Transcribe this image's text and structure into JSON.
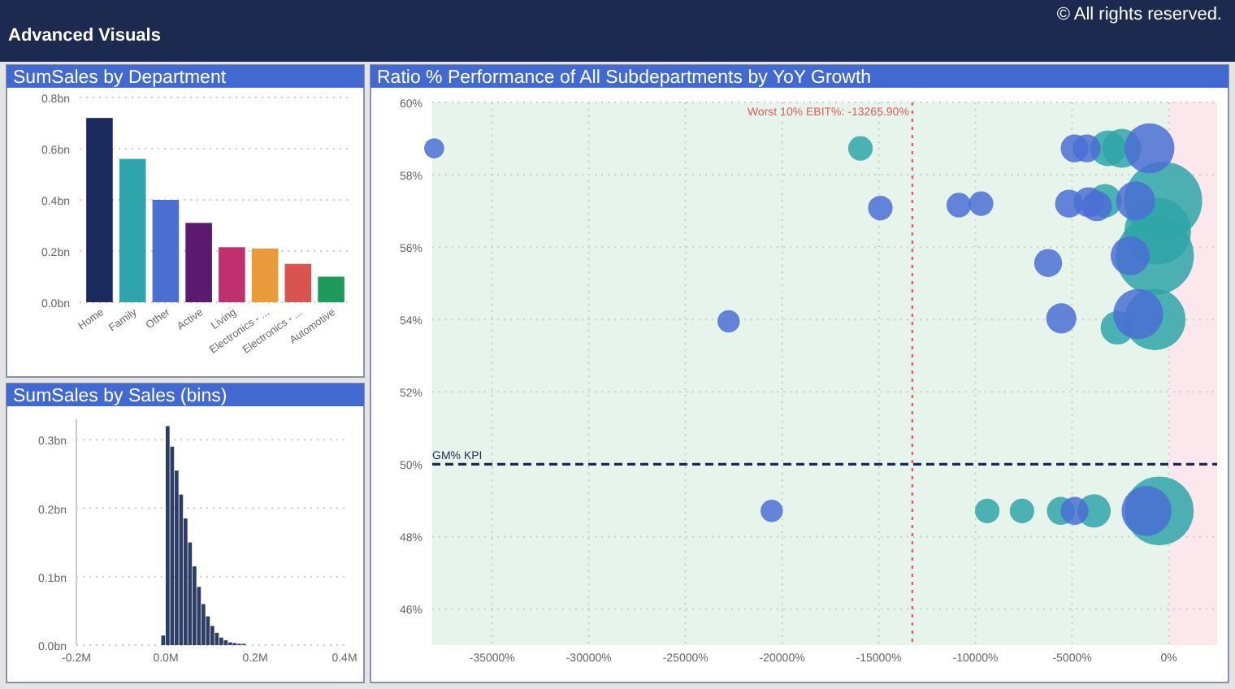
{
  "chart_data": [
    {
      "type": "other",
      "title": "Advanced Visuals",
      "annotations": [
        "© All rights reserved."
      ]
    },
    {
      "type": "bar",
      "title": "SumSales by Department",
      "categories": [
        "Home",
        "Family",
        "Other",
        "Active",
        "Living",
        "Electronics - ...",
        "Electronics - ...",
        "Automotive"
      ],
      "values": [
        0.72,
        0.56,
        0.4,
        0.31,
        0.215,
        0.21,
        0.15,
        0.1
      ],
      "colors": [
        "#1b2a5e",
        "#2fa4ab",
        "#4a6fd1",
        "#5c1a6e",
        "#c0306f",
        "#e99a3a",
        "#d9534f",
        "#1e9b5a"
      ],
      "ylim": [
        0,
        0.8
      ],
      "yticks": [
        {
          "value": 0,
          "label": "0.0bn"
        },
        {
          "value": 0.2,
          "label": "0.2bn"
        },
        {
          "value": 0.4,
          "label": "0.4bn"
        },
        {
          "value": 0.6,
          "label": "0.6bn"
        },
        {
          "value": 0.8,
          "label": "0.8bn"
        }
      ],
      "grid": "y"
    },
    {
      "type": "histogram",
      "title": "SumSales by Sales (bins)",
      "color": "#2c3e66",
      "bins": [
        -0.01,
        0,
        0.01,
        0.02,
        0.03,
        0.04,
        0.05,
        0.06,
        0.07,
        0.08,
        0.09,
        0.1,
        0.11,
        0.12,
        0.13,
        0.14,
        0.15,
        0.16,
        0.17,
        0.18
      ],
      "values": [
        0.014,
        0.32,
        0.29,
        0.255,
        0.22,
        0.185,
        0.15,
        0.115,
        0.085,
        0.06,
        0.042,
        0.028,
        0.018,
        0.011,
        0.007,
        0.004,
        0.003,
        0.002,
        0.002
      ],
      "xlim": [
        -0.2,
        0.4
      ],
      "xticks": [
        {
          "value": -0.2,
          "label": "-0.2M"
        },
        {
          "value": 0,
          "label": "0.0M"
        },
        {
          "value": 0.2,
          "label": "0.2M"
        },
        {
          "value": 0.4,
          "label": "0.4M"
        }
      ],
      "ylim": [
        0,
        0.33
      ],
      "yticks": [
        {
          "value": 0,
          "label": "0.0bn"
        },
        {
          "value": 0.1,
          "label": "0.1bn"
        },
        {
          "value": 0.2,
          "label": "0.2bn"
        },
        {
          "value": 0.3,
          "label": "0.3bn"
        }
      ],
      "grid": "y"
    },
    {
      "type": "bubble",
      "title": "Ratio % Performance of All Subdepartments by YoY Growth",
      "xlim": [
        -38100,
        2500
      ],
      "ylim": [
        45,
        60
      ],
      "xticks": [
        {
          "value": -35000,
          "label": "-35000%"
        },
        {
          "value": -30000,
          "label": "-30000%"
        },
        {
          "value": -25000,
          "label": "-25000%"
        },
        {
          "value": -20000,
          "label": "-20000%"
        },
        {
          "value": -15000,
          "label": "-15000%"
        },
        {
          "value": -10000,
          "label": "-10000%"
        },
        {
          "value": -5000,
          "label": "-5000%"
        },
        {
          "value": 0,
          "label": "0%"
        }
      ],
      "yticks": [
        {
          "value": 46,
          "label": "46%"
        },
        {
          "value": 48,
          "label": "48%"
        },
        {
          "value": 50,
          "label": "50%"
        },
        {
          "value": 52,
          "label": "52%"
        },
        {
          "value": 54,
          "label": "54%"
        },
        {
          "value": 56,
          "label": "56%"
        },
        {
          "value": 58,
          "label": "58%"
        },
        {
          "value": 60,
          "label": "60%"
        }
      ],
      "grid": true,
      "bands": [
        {
          "axis": "x",
          "from": -38100,
          "to": 0,
          "color": "#e6f4ec"
        },
        {
          "axis": "x",
          "from": 0,
          "to": 2500,
          "color": "#fce8ec"
        }
      ],
      "ref_lines": [
        {
          "axis": "x",
          "value": -13265.9,
          "label": "Worst 10% EBIT%: -13265.90%",
          "color": "#e0605a",
          "line_style": "dotted"
        },
        {
          "axis": "y",
          "value": 50,
          "label": "GM% KPI",
          "color": "#1b2a4e",
          "line_style": "dashed"
        }
      ],
      "series": [
        {
          "color": "#2fa4a8",
          "x": [
            -15950,
            -3300,
            -3150,
            -2430,
            -290,
            -570,
            -720,
            -720,
            -2660,
            -9390,
            -7590,
            -5590,
            -3870,
            -490
          ],
          "values": [
            58.73,
            57.28,
            58.73,
            58.73,
            57.28,
            56.44,
            55.76,
            54.0,
            53.77,
            48.71,
            48.71,
            48.71,
            48.71,
            48.71
          ],
          "sizes": [
            0.099,
            0.184,
            0.209,
            0.25,
            1,
            0.73,
            1,
            0.62,
            0.184,
            0.099,
            0.099,
            0.128,
            0.184,
            0.78
          ]
        },
        {
          "color": "#4a6fd4",
          "x": [
            -38000,
            -14920,
            -10860,
            -9710,
            -22770,
            -6240,
            -5560,
            -5160,
            -4870,
            -4240,
            -4150,
            -3720,
            -1720,
            -2000,
            -1580,
            -1000,
            -20540,
            -4870,
            -1150
          ],
          "values": [
            58.73,
            57.08,
            57.16,
            57.2,
            53.95,
            55.56,
            54.03,
            57.2,
            58.73,
            58.73,
            57.24,
            57.13,
            57.28,
            55.76,
            54.15,
            58.73,
            48.71,
            48.71,
            48.71
          ],
          "sizes": [
            0.066,
            0.099,
            0.099,
            0.099,
            0.082,
            0.128,
            0.149,
            0.128,
            0.128,
            0.128,
            0.149,
            0.149,
            0.25,
            0.25,
            0.41,
            0.41,
            0.082,
            0.128,
            0.41
          ]
        }
      ]
    }
  ]
}
